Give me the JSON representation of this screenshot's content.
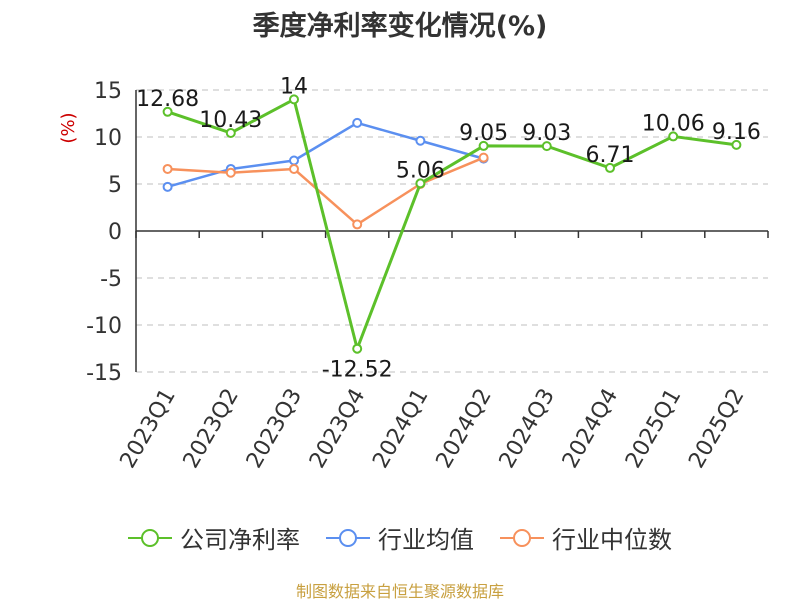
{
  "chart_data": {
    "type": "line",
    "title": "季度净利率变化情况(%)",
    "ylabel": "(%)",
    "xlabel": "",
    "categories": [
      "2023Q1",
      "2023Q2",
      "2023Q3",
      "2023Q4",
      "2024Q1",
      "2024Q2",
      "2024Q3",
      "2024Q4",
      "2025Q1",
      "2025Q2"
    ],
    "ylim": [
      -15,
      15
    ],
    "yticks": [
      15,
      10,
      5,
      0,
      -5,
      -10,
      -15
    ],
    "grid": true,
    "legend_position": "bottom",
    "series": [
      {
        "name": "公司净利率",
        "color": "#5cc02a",
        "values": [
          12.68,
          10.43,
          14,
          -12.52,
          5.06,
          9.05,
          9.03,
          6.71,
          10.06,
          9.16
        ],
        "labels": [
          "12.68",
          "10.43",
          "14",
          "-12.52",
          "5.06",
          "9.05",
          "9.03",
          "6.71",
          "10.06",
          "9.16"
        ]
      },
      {
        "name": "行业均值",
        "color": "#5b8ff0",
        "values": [
          4.7,
          6.6,
          7.5,
          11.5,
          9.6,
          7.7,
          null,
          null,
          null,
          null
        ]
      },
      {
        "name": "行业中位数",
        "color": "#f7915c",
        "values": [
          6.6,
          6.2,
          6.6,
          0.7,
          5.0,
          7.8,
          null,
          null,
          null,
          null
        ]
      }
    ]
  },
  "source": "制图数据来自恒生聚源数据库"
}
